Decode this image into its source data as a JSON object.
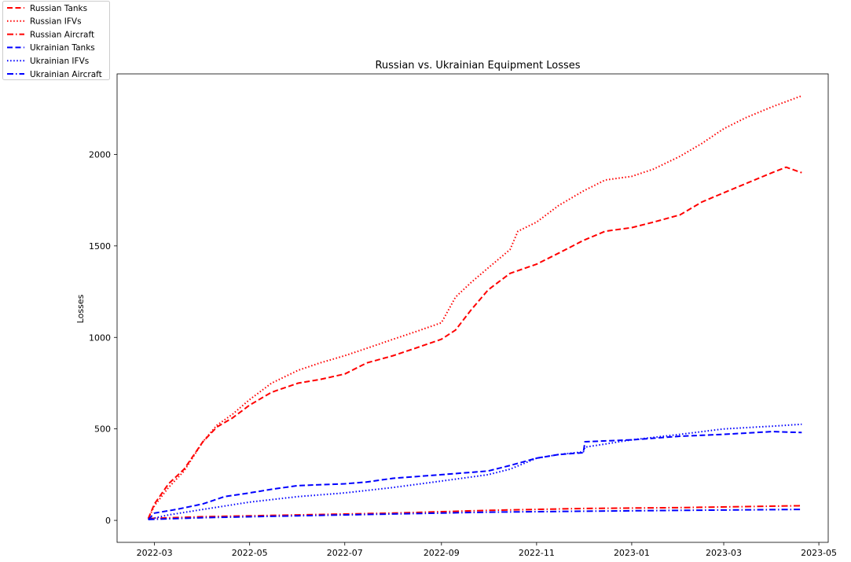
{
  "chart_data": {
    "type": "line",
    "title": "Russian vs. Ukrainian Equipment Losses",
    "xlabel": "",
    "ylabel": "Losses",
    "xlim": [
      "2022-02-05",
      "2023-05-07"
    ],
    "ylim": [
      -120,
      2440
    ],
    "x_ticks": [
      "2022-03",
      "2022-05",
      "2022-07",
      "2022-09",
      "2022-11",
      "2023-01",
      "2023-03",
      "2023-05"
    ],
    "y_ticks": [
      0,
      500,
      1000,
      1500,
      2000
    ],
    "grid": false,
    "legend_position": "top-left outside",
    "series": [
      {
        "name": "Russian Tanks",
        "color": "#ff0000",
        "style": "dashed",
        "x": [
          "2022-02-25",
          "2022-03-01",
          "2022-03-10",
          "2022-03-20",
          "2022-04-01",
          "2022-04-10",
          "2022-04-20",
          "2022-05-01",
          "2022-05-15",
          "2022-06-01",
          "2022-06-15",
          "2022-07-01",
          "2022-07-15",
          "2022-08-01",
          "2022-08-15",
          "2022-09-01",
          "2022-09-10",
          "2022-09-20",
          "2022-10-01",
          "2022-10-15",
          "2022-11-01",
          "2022-11-15",
          "2022-12-01",
          "2022-12-15",
          "2023-01-01",
          "2023-01-15",
          "2023-02-01",
          "2023-02-15",
          "2023-03-01",
          "2023-03-15",
          "2023-04-01",
          "2023-04-10",
          "2023-04-20"
        ],
        "values": [
          10,
          90,
          200,
          280,
          430,
          510,
          560,
          630,
          700,
          750,
          770,
          800,
          860,
          900,
          940,
          990,
          1040,
          1150,
          1260,
          1350,
          1400,
          1460,
          1530,
          1580,
          1600,
          1630,
          1670,
          1740,
          1790,
          1840,
          1900,
          1930,
          1900
        ]
      },
      {
        "name": "Russian IFVs",
        "color": "#ff0000",
        "style": "dotted",
        "x": [
          "2022-02-25",
          "2022-03-01",
          "2022-03-10",
          "2022-03-20",
          "2022-04-01",
          "2022-04-10",
          "2022-04-20",
          "2022-05-01",
          "2022-05-15",
          "2022-06-01",
          "2022-06-15",
          "2022-07-01",
          "2022-07-15",
          "2022-08-01",
          "2022-08-15",
          "2022-09-01",
          "2022-09-10",
          "2022-09-20",
          "2022-10-01",
          "2022-10-15",
          "2022-10-20",
          "2022-11-01",
          "2022-11-15",
          "2022-12-01",
          "2022-12-15",
          "2023-01-01",
          "2023-01-15",
          "2023-02-01",
          "2023-02-15",
          "2023-03-01",
          "2023-03-15",
          "2023-04-01",
          "2023-04-20"
        ],
        "values": [
          10,
          80,
          180,
          270,
          430,
          520,
          580,
          660,
          750,
          820,
          860,
          900,
          940,
          990,
          1030,
          1080,
          1220,
          1300,
          1380,
          1480,
          1580,
          1630,
          1720,
          1800,
          1860,
          1880,
          1920,
          1990,
          2060,
          2140,
          2200,
          2260,
          2320
        ]
      },
      {
        "name": "Russian Aircraft",
        "color": "#ff0000",
        "style": "dashdot",
        "x": [
          "2022-02-25",
          "2022-04-01",
          "2022-06-01",
          "2022-08-01",
          "2022-10-01",
          "2022-12-01",
          "2023-02-01",
          "2023-04-20"
        ],
        "values": [
          10,
          20,
          30,
          40,
          55,
          65,
          70,
          80
        ]
      },
      {
        "name": "Ukrainian Tanks",
        "color": "#0000ff",
        "style": "dashed",
        "x": [
          "2022-02-25",
          "2022-03-01",
          "2022-03-15",
          "2022-04-01",
          "2022-04-15",
          "2022-05-01",
          "2022-05-15",
          "2022-06-01",
          "2022-07-01",
          "2022-07-15",
          "2022-08-01",
          "2022-09-01",
          "2022-10-01",
          "2022-10-15",
          "2022-11-01",
          "2022-11-15",
          "2022-12-01",
          "2022-12-02",
          "2023-01-01",
          "2023-02-01",
          "2023-03-01",
          "2023-04-01",
          "2023-04-20"
        ],
        "values": [
          5,
          40,
          60,
          90,
          130,
          150,
          170,
          190,
          200,
          210,
          230,
          250,
          270,
          300,
          340,
          360,
          370,
          430,
          440,
          460,
          470,
          485,
          480
        ]
      },
      {
        "name": "Ukrainian IFVs",
        "color": "#0000ff",
        "style": "dotted",
        "x": [
          "2022-02-25",
          "2022-03-10",
          "2022-04-01",
          "2022-05-01",
          "2022-06-01",
          "2022-07-01",
          "2022-08-01",
          "2022-09-01",
          "2022-10-01",
          "2022-10-15",
          "2022-11-01",
          "2022-11-15",
          "2022-12-01",
          "2022-12-02",
          "2023-01-01",
          "2023-02-01",
          "2023-03-01",
          "2023-04-01",
          "2023-04-20"
        ],
        "values": [
          5,
          30,
          60,
          100,
          130,
          150,
          180,
          215,
          250,
          280,
          340,
          360,
          375,
          400,
          440,
          470,
          500,
          515,
          525
        ]
      },
      {
        "name": "Ukrainian Aircraft",
        "color": "#0000ff",
        "style": "dashdot",
        "x": [
          "2022-02-25",
          "2022-04-01",
          "2022-06-01",
          "2022-08-01",
          "2022-10-01",
          "2022-12-01",
          "2023-02-01",
          "2023-04-20"
        ],
        "values": [
          5,
          15,
          25,
          35,
          45,
          50,
          55,
          60
        ]
      }
    ]
  }
}
